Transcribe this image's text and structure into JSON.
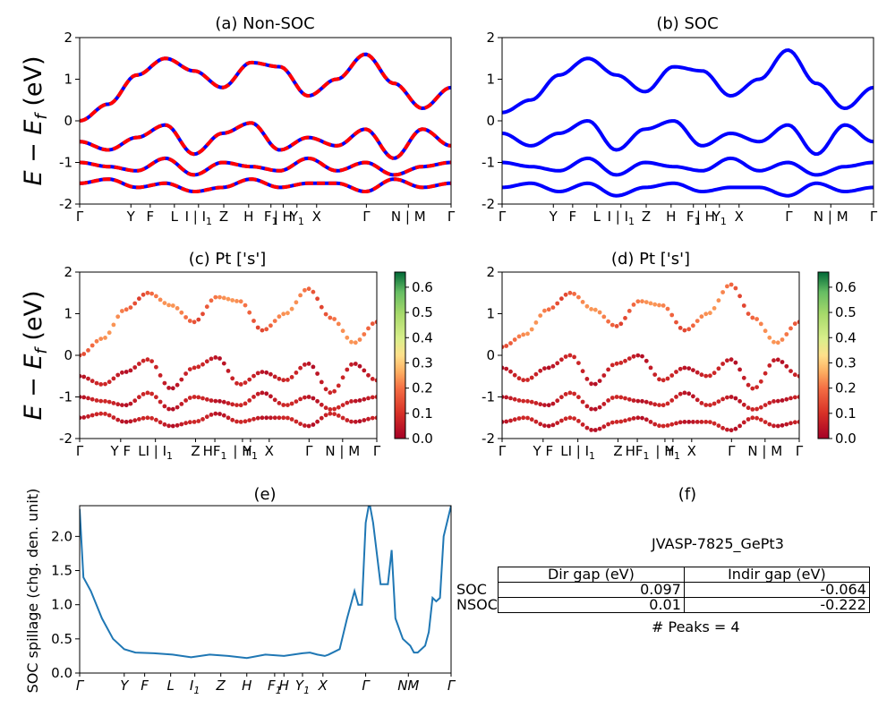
{
  "figure": {
    "ylabel_main": "E − E",
    "ylabel_sub": "f",
    "ylabel_unit": " (eV)",
    "spillage_ylabel": "SOC spillage (chg. den. unit)"
  },
  "panels": {
    "a": {
      "title": "(a) Non-SOC"
    },
    "b": {
      "title": "(b) SOC"
    },
    "c": {
      "title": "(c)  Pt ['s']"
    },
    "d": {
      "title": "(d) Pt ['s']"
    },
    "e": {
      "title": "(e)"
    },
    "f": {
      "title": "(f)"
    }
  },
  "kpath_top": [
    {
      "x": 0,
      "main": "Γ",
      "sub": ""
    },
    {
      "x": 0.138,
      "main": "Y",
      "sub": ""
    },
    {
      "x": 0.19,
      "main": "F",
      "sub": ""
    },
    {
      "x": 0.255,
      "main": "L",
      "sub": ""
    },
    {
      "x": 0.32,
      "main": "I | I",
      "sub": "1"
    },
    {
      "x": 0.388,
      "main": "Z",
      "sub": ""
    },
    {
      "x": 0.455,
      "main": "H",
      "sub": ""
    },
    {
      "x": 0.515,
      "main": "F",
      "sub": "1"
    },
    {
      "x": 0.548,
      "main": "| H",
      "sub": ""
    },
    {
      "x": 0.585,
      "main": "Y",
      "sub": "1"
    },
    {
      "x": 0.638,
      "main": "X",
      "sub": ""
    },
    {
      "x": 0.772,
      "main": "Γ",
      "sub": ""
    },
    {
      "x": 0.885,
      "main": "N | M",
      "sub": ""
    },
    {
      "x": 1.0,
      "main": "Γ",
      "sub": ""
    }
  ],
  "kpath_mid": [
    {
      "x": 0,
      "main": "Γ",
      "sub": ""
    },
    {
      "x": 0.138,
      "main": "Y F",
      "sub": ""
    },
    {
      "x": 0.255,
      "main": "LI | I",
      "sub": "1"
    },
    {
      "x": 0.39,
      "main": "Z",
      "sub": ""
    },
    {
      "x": 0.455,
      "main": "HF",
      "sub": "1"
    },
    {
      "x": 0.548,
      "main": "| H",
      "sub": ""
    },
    {
      "x": 0.575,
      "main": "Y",
      "sub": "1"
    },
    {
      "x": 0.638,
      "main": "X",
      "sub": ""
    },
    {
      "x": 0.772,
      "main": "Γ",
      "sub": ""
    },
    {
      "x": 0.885,
      "main": "N | M",
      "sub": ""
    },
    {
      "x": 1.0,
      "main": "Γ",
      "sub": ""
    }
  ],
  "kpath_bottom": [
    {
      "x": 0,
      "main": "Γ",
      "sub": ""
    },
    {
      "x": 0.12,
      "main": "Y",
      "sub": ""
    },
    {
      "x": 0.175,
      "main": "F",
      "sub": ""
    },
    {
      "x": 0.245,
      "main": "L",
      "sub": ""
    },
    {
      "x": 0.31,
      "main": "I",
      "sub": "1"
    },
    {
      "x": 0.38,
      "main": "Z",
      "sub": ""
    },
    {
      "x": 0.45,
      "main": "H",
      "sub": ""
    },
    {
      "x": 0.525,
      "main": "F",
      "sub": "1"
    },
    {
      "x": 0.55,
      "main": "H",
      "sub": ""
    },
    {
      "x": 0.6,
      "main": "Y",
      "sub": "1"
    },
    {
      "x": 0.655,
      "main": "X",
      "sub": ""
    },
    {
      "x": 0.77,
      "main": "Γ",
      "sub": ""
    },
    {
      "x": 0.885,
      "main": "NM",
      "sub": ""
    },
    {
      "x": 1.0,
      "main": "Γ",
      "sub": ""
    }
  ],
  "colorbar": {
    "ticks": [
      "0.0",
      "0.1",
      "0.2",
      "0.3",
      "0.4",
      "0.5",
      "0.6"
    ],
    "max": 0.66
  },
  "colors": {
    "nonsoc_red": "#ff0000",
    "nonsoc_blue": "#0000ff",
    "soc_blue": "#0000ff",
    "spillage": "#1f77b4"
  },
  "chart_data": [
    {
      "type": "line",
      "title": "(a) Non-SOC",
      "ylabel": "E − E_f (eV)",
      "ylim": [
        -2,
        2
      ],
      "yticks": [
        -2,
        -1,
        0,
        1,
        2
      ],
      "series": [
        {
          "values": [
            0.0,
            0.4,
            1.1,
            1.5,
            1.2,
            0.8,
            1.4,
            1.3,
            0.6,
            1.0,
            1.6,
            0.9,
            0.3,
            0.8
          ]
        },
        {
          "values": [
            -0.5,
            -0.7,
            -0.4,
            -0.1,
            -0.8,
            -0.3,
            -0.05,
            -0.7,
            -0.4,
            -0.6,
            -0.2,
            -0.9,
            -0.2,
            -0.6
          ]
        },
        {
          "values": [
            -1.0,
            -1.1,
            -1.2,
            -0.9,
            -1.3,
            -1.0,
            -1.1,
            -1.2,
            -0.9,
            -1.2,
            -1.0,
            -1.3,
            -1.1,
            -1.0
          ]
        },
        {
          "values": [
            -1.5,
            -1.4,
            -1.6,
            -1.5,
            -1.7,
            -1.6,
            -1.4,
            -1.6,
            -1.5,
            -1.5,
            -1.7,
            -1.4,
            -1.6,
            -1.5
          ]
        }
      ]
    },
    {
      "type": "line",
      "title": "(b) SOC",
      "ylim": [
        -2,
        2
      ],
      "yticks": [
        -2,
        -1,
        0,
        1,
        2
      ],
      "series": [
        {
          "values": [
            0.2,
            0.5,
            1.1,
            1.5,
            1.1,
            0.7,
            1.3,
            1.2,
            0.6,
            1.0,
            1.7,
            0.9,
            0.3,
            0.8
          ]
        },
        {
          "values": [
            -0.3,
            -0.6,
            -0.3,
            0.0,
            -0.7,
            -0.2,
            0.0,
            -0.6,
            -0.3,
            -0.5,
            -0.1,
            -0.8,
            -0.1,
            -0.5
          ]
        },
        {
          "values": [
            -1.0,
            -1.1,
            -1.2,
            -0.9,
            -1.3,
            -1.0,
            -1.1,
            -1.2,
            -0.9,
            -1.2,
            -1.0,
            -1.3,
            -1.1,
            -1.0
          ]
        },
        {
          "values": [
            -1.6,
            -1.5,
            -1.7,
            -1.5,
            -1.8,
            -1.6,
            -1.5,
            -1.7,
            -1.6,
            -1.6,
            -1.8,
            -1.5,
            -1.7,
            -1.6
          ]
        }
      ]
    },
    {
      "type": "scatter",
      "title": "(c)  Pt ['s']",
      "ylim": [
        -2,
        2
      ],
      "colorbar_range": [
        0.0,
        0.66
      ]
    },
    {
      "type": "scatter",
      "title": "(d) Pt ['s']",
      "ylim": [
        -2,
        2
      ],
      "colorbar_range": [
        0.0,
        0.66
      ]
    },
    {
      "type": "line",
      "title": "(e)",
      "ylabel": "SOC spillage (chg. den. unit)",
      "ylim": [
        0.0,
        2.45
      ],
      "yticks": [
        0.0,
        0.5,
        1.0,
        1.5,
        2.0
      ],
      "x": [
        0,
        0.01,
        0.03,
        0.06,
        0.09,
        0.12,
        0.15,
        0.2,
        0.25,
        0.3,
        0.35,
        0.4,
        0.45,
        0.5,
        0.55,
        0.6,
        0.62,
        0.64,
        0.66,
        0.67,
        0.7,
        0.72,
        0.74,
        0.75,
        0.76,
        0.77,
        0.78,
        0.79,
        0.81,
        0.83,
        0.84,
        0.85,
        0.87,
        0.89,
        0.9,
        0.91,
        0.93,
        0.94,
        0.95,
        0.96,
        0.97,
        0.98,
        1.0
      ],
      "values": [
        2.4,
        1.4,
        1.2,
        0.8,
        0.5,
        0.35,
        0.3,
        0.29,
        0.27,
        0.23,
        0.27,
        0.25,
        0.22,
        0.27,
        0.25,
        0.29,
        0.3,
        0.27,
        0.25,
        0.27,
        0.35,
        0.8,
        1.2,
        1.0,
        1.0,
        2.2,
        2.5,
        2.2,
        1.3,
        1.3,
        1.8,
        0.8,
        0.5,
        0.4,
        0.3,
        0.3,
        0.4,
        0.6,
        1.1,
        1.05,
        1.1,
        2.0,
        2.45
      ]
    },
    {
      "type": "table",
      "title": "(f)",
      "caption": "JVASP-7825_GePt3",
      "columns": [
        "",
        "Dir gap (eV)",
        "Indir gap (eV)"
      ],
      "rows": [
        [
          "SOC",
          "0.097",
          "-0.064"
        ],
        [
          "NSOC",
          "0.01",
          "-0.222"
        ]
      ],
      "note": "# Peaks = 4"
    }
  ]
}
